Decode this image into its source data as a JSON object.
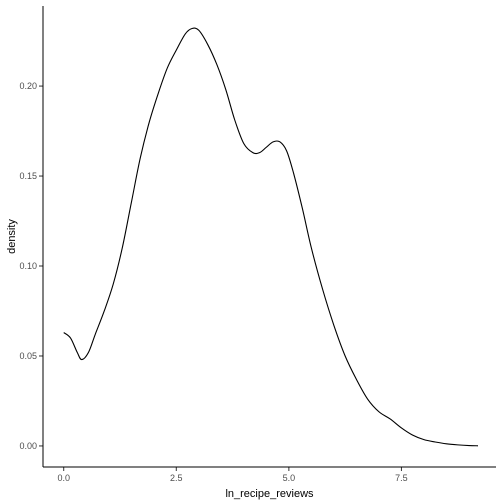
{
  "chart_data": {
    "type": "line",
    "xlabel": "ln_recipe_reviews",
    "ylabel": "density",
    "xlim": [
      -0.46,
      9.6
    ],
    "ylim": [
      -0.0117,
      0.2445
    ],
    "x_ticks": [
      {
        "value": 0.0,
        "label": "0.0"
      },
      {
        "value": 2.5,
        "label": "2.5"
      },
      {
        "value": 5.0,
        "label": "5.0"
      },
      {
        "value": 7.5,
        "label": "7.5"
      }
    ],
    "y_ticks": [
      {
        "value": 0.0,
        "label": "0.00"
      },
      {
        "value": 0.05,
        "label": "0.05"
      },
      {
        "value": 0.1,
        "label": "0.10"
      },
      {
        "value": 0.15,
        "label": "0.15"
      },
      {
        "value": 0.2,
        "label": "0.20"
      }
    ],
    "grid": false,
    "line_color": "#000000",
    "series": [
      {
        "x": [
          0.0,
          0.15,
          0.3,
          0.4,
          0.55,
          0.7,
          0.9,
          1.1,
          1.3,
          1.5,
          1.7,
          1.9,
          2.1,
          2.3,
          2.5,
          2.7,
          2.85,
          3.0,
          3.2,
          3.4,
          3.6,
          3.8,
          4.0,
          4.2,
          4.35,
          4.5,
          4.65,
          4.8,
          4.95,
          5.1,
          5.3,
          5.5,
          5.75,
          6.0,
          6.25,
          6.5,
          6.75,
          7.0,
          7.25,
          7.5,
          7.75,
          8.0,
          8.25,
          8.5,
          8.75,
          9.0,
          9.2
        ],
        "y": [
          0.063,
          0.06,
          0.052,
          0.048,
          0.052,
          0.062,
          0.075,
          0.09,
          0.11,
          0.135,
          0.16,
          0.18,
          0.196,
          0.21,
          0.22,
          0.229,
          0.232,
          0.231,
          0.223,
          0.212,
          0.198,
          0.181,
          0.168,
          0.163,
          0.163,
          0.166,
          0.169,
          0.169,
          0.164,
          0.152,
          0.132,
          0.11,
          0.087,
          0.067,
          0.05,
          0.037,
          0.026,
          0.019,
          0.015,
          0.01,
          0.006,
          0.0035,
          0.0022,
          0.0012,
          0.0006,
          0.0002,
          0.0001
        ]
      }
    ]
  }
}
